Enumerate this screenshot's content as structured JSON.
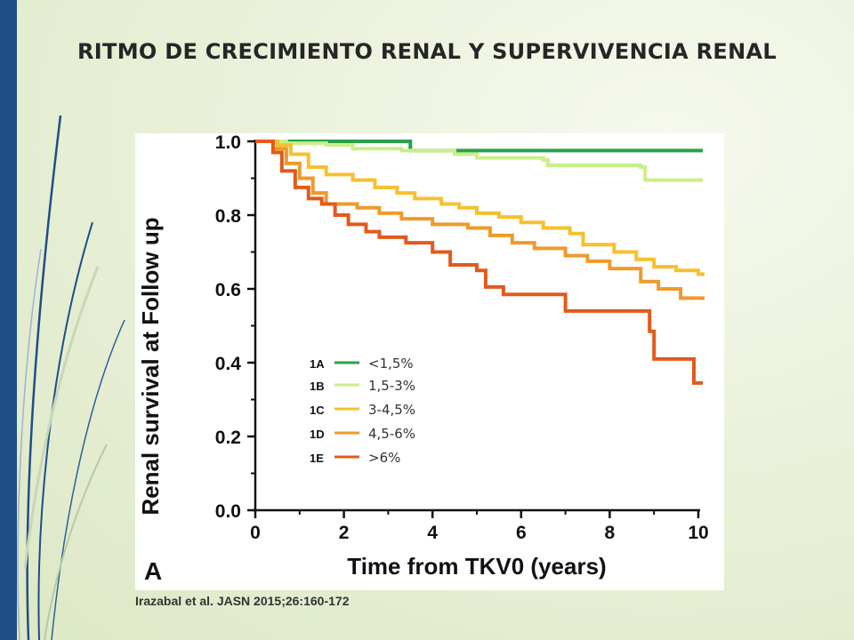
{
  "slide": {
    "title": "RITMO DE CRECIMIENTO RENAL Y SUPERVIVENCIA RENAL",
    "citation": "Irazabal et al. JASN 2015;26:160-172"
  },
  "chart_data": {
    "type": "line",
    "panel_label": "A",
    "xlabel": "Time from TKV0 (years)",
    "ylabel": "Renal survival at Follow up",
    "xlim": [
      0,
      10
    ],
    "ylim": [
      0,
      1.0
    ],
    "x_ticks": [
      "0",
      "2",
      "4",
      "6",
      "8",
      "10"
    ],
    "y_ticks": [
      "0.0",
      "0.2",
      "0.4",
      "0.6",
      "0.8",
      "1.0"
    ],
    "grid": false,
    "legend_position": "lower-middle",
    "series": [
      {
        "name": "<1,5%",
        "code": "1A",
        "color": "#2aa04a",
        "points": [
          [
            0,
            1
          ],
          [
            3.5,
            1
          ],
          [
            3.5,
            0.975
          ],
          [
            10.1,
            0.975
          ]
        ]
      },
      {
        "name": "1,5-3%",
        "code": "1B",
        "color": "#c8ef88",
        "points": [
          [
            0,
            1
          ],
          [
            0.5,
            1
          ],
          [
            0.7,
            0.995
          ],
          [
            1.6,
            0.99
          ],
          [
            2.2,
            0.98
          ],
          [
            3.3,
            0.975
          ],
          [
            4.5,
            0.965
          ],
          [
            5,
            0.955
          ],
          [
            6.5,
            0.95
          ],
          [
            6.6,
            0.935
          ],
          [
            8.7,
            0.93
          ],
          [
            8.8,
            0.895
          ],
          [
            10.1,
            0.895
          ]
        ]
      },
      {
        "name": "3-4,5%",
        "code": "1C",
        "color": "#f6c02e",
        "points": [
          [
            0,
            1
          ],
          [
            0.5,
            0.99
          ],
          [
            0.8,
            0.965
          ],
          [
            1.2,
            0.93
          ],
          [
            1.6,
            0.91
          ],
          [
            2.2,
            0.895
          ],
          [
            2.7,
            0.875
          ],
          [
            3.2,
            0.86
          ],
          [
            3.6,
            0.845
          ],
          [
            4.2,
            0.83
          ],
          [
            4.6,
            0.82
          ],
          [
            5,
            0.805
          ],
          [
            5.5,
            0.795
          ],
          [
            6,
            0.78
          ],
          [
            6.5,
            0.765
          ],
          [
            7.1,
            0.75
          ],
          [
            7.4,
            0.72
          ],
          [
            8.1,
            0.7
          ],
          [
            8.6,
            0.68
          ],
          [
            9,
            0.66
          ],
          [
            9.5,
            0.65
          ],
          [
            10,
            0.64
          ],
          [
            10.1,
            0.635
          ]
        ]
      },
      {
        "name": "4,5-6%",
        "code": "1D",
        "color": "#ef9a2a",
        "points": [
          [
            0,
            1
          ],
          [
            0.4,
            0.98
          ],
          [
            0.7,
            0.94
          ],
          [
            1,
            0.9
          ],
          [
            1.3,
            0.86
          ],
          [
            1.6,
            0.83
          ],
          [
            2.3,
            0.82
          ],
          [
            2.8,
            0.805
          ],
          [
            3.3,
            0.79
          ],
          [
            4,
            0.775
          ],
          [
            4.8,
            0.765
          ],
          [
            5.3,
            0.745
          ],
          [
            5.8,
            0.725
          ],
          [
            6.3,
            0.71
          ],
          [
            7,
            0.69
          ],
          [
            7.5,
            0.675
          ],
          [
            8,
            0.655
          ],
          [
            8.7,
            0.62
          ],
          [
            9.1,
            0.6
          ],
          [
            9.6,
            0.575
          ],
          [
            10.1,
            0.57
          ]
        ]
      },
      {
        "name": ">6%",
        "code": "1E",
        "color": "#e25a1c",
        "points": [
          [
            0,
            1
          ],
          [
            0.4,
            0.97
          ],
          [
            0.6,
            0.92
          ],
          [
            0.9,
            0.875
          ],
          [
            1.2,
            0.845
          ],
          [
            1.5,
            0.83
          ],
          [
            1.8,
            0.8
          ],
          [
            2.1,
            0.775
          ],
          [
            2.5,
            0.755
          ],
          [
            2.8,
            0.74
          ],
          [
            3.4,
            0.725
          ],
          [
            4,
            0.7
          ],
          [
            4.4,
            0.665
          ],
          [
            5,
            0.65
          ],
          [
            5.2,
            0.605
          ],
          [
            5.6,
            0.585
          ],
          [
            6,
            0.585
          ],
          [
            7,
            0.57
          ],
          [
            7,
            0.54
          ],
          [
            8,
            0.54
          ],
          [
            8.9,
            0.54
          ],
          [
            8.9,
            0.485
          ],
          [
            9,
            0.485
          ],
          [
            9,
            0.41
          ],
          [
            9.9,
            0.41
          ],
          [
            9.9,
            0.345
          ],
          [
            10.1,
            0.345
          ]
        ]
      }
    ]
  }
}
